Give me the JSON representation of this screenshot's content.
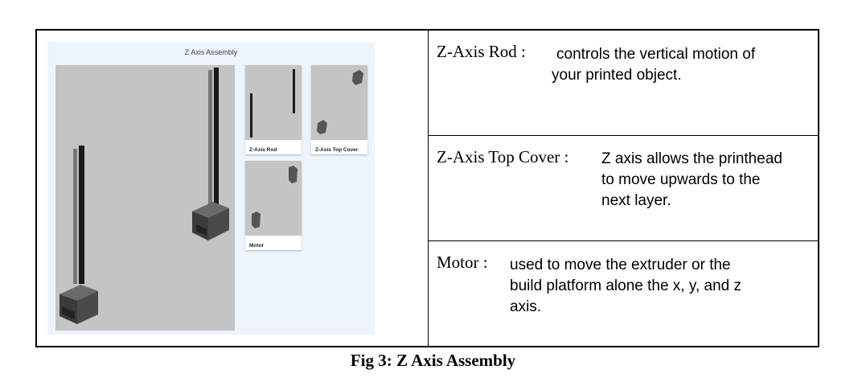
{
  "viewer": {
    "title": "Z Axis Assembly",
    "thumbnails": [
      {
        "label": "Z-Axis Rod"
      },
      {
        "label": "Z-Axis Top Cover"
      },
      {
        "label": "Motor"
      }
    ]
  },
  "rows": [
    {
      "term": "Z-Axis Rod :",
      "desc_lines": [
        "controls the vertical motion of",
        "your printed object."
      ]
    },
    {
      "term": "Z-Axis Top Cover :",
      "desc_lines": [
        "Z axis allows the printhead",
        "to move upwards to the",
        "next layer."
      ]
    },
    {
      "term": "Motor :",
      "desc_lines": [
        "used to move the extruder or the",
        "build platform alone the x, y, and z",
        "axis."
      ]
    }
  ],
  "caption": "Fig 3: Z Axis Assembly",
  "colors": {
    "viewer_bg": "#eef4fc",
    "model_bg": "#c4c4c4",
    "part_dark": "#1a1a1a",
    "part_grey": "#777777"
  }
}
